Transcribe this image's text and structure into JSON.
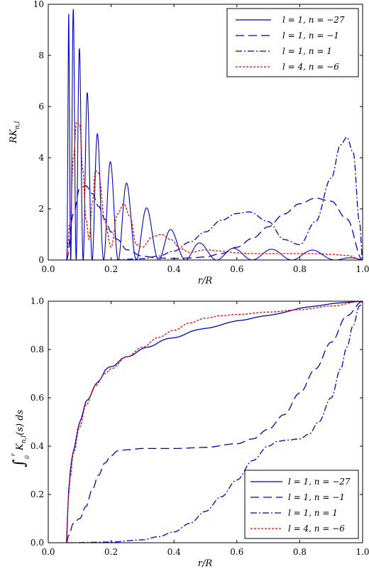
{
  "chart_data": [
    {
      "type": "line",
      "panel": "top",
      "xlabel": "r/R",
      "ylabel": "RK_{n,l}",
      "ylabel_main": "RK",
      "ylabel_sub": "n,l",
      "xlim": [
        0.0,
        1.0
      ],
      "ylim": [
        0,
        10
      ],
      "xticks": [
        "0.0",
        "0.2",
        "0.4",
        "0.6",
        "0.8",
        "1.0"
      ],
      "yticks": [
        "0",
        "2",
        "4",
        "6",
        "8",
        "10"
      ],
      "grid": false,
      "legend_position": "top-right",
      "series": [
        {
          "name": "l = 1, n = −27",
          "color": "#0000cc",
          "dash": "solid",
          "model": "oscillating",
          "x": [
            0.058,
            0.065,
            0.07,
            0.08,
            0.1,
            0.12,
            0.14,
            0.16,
            0.18,
            0.2,
            0.25,
            0.3,
            0.35,
            0.4,
            0.45,
            0.5,
            0.55,
            0.6,
            0.65,
            0.7,
            0.75,
            0.8,
            0.85,
            0.9,
            0.95,
            1.0
          ],
          "y": [
            0,
            10,
            10,
            9.8,
            8.2,
            6.8,
            5.6,
            4.8,
            4.2,
            3.8,
            3.0,
            2.2,
            1.6,
            1.1,
            0.8,
            0.6,
            0.5,
            0.45,
            0.42,
            0.42,
            0.42,
            0.42,
            0.38,
            0.3,
            0.15,
            0
          ]
        },
        {
          "name": "l = 1, n = −1",
          "color": "#0000cc",
          "dash": "long-dash",
          "model": "smooth",
          "x": [
            0.058,
            0.08,
            0.1,
            0.12,
            0.14,
            0.16,
            0.18,
            0.2,
            0.22,
            0.25,
            0.3,
            0.35,
            0.4,
            0.45,
            0.5,
            0.55,
            0.6,
            0.65,
            0.7,
            0.75,
            0.8,
            0.85,
            0.9,
            0.95,
            1.0
          ],
          "y": [
            0,
            1.8,
            2.8,
            2.9,
            2.6,
            2.1,
            1.6,
            1.1,
            0.8,
            0.4,
            0.15,
            0.08,
            0.06,
            0.08,
            0.12,
            0.25,
            0.5,
            0.85,
            1.3,
            1.8,
            2.2,
            2.42,
            2.3,
            1.6,
            0
          ]
        },
        {
          "name": "l = 1, n = 1",
          "color": "#0000cc",
          "dash": "dash-dot",
          "model": "smooth",
          "x": [
            0.058,
            0.1,
            0.2,
            0.3,
            0.35,
            0.4,
            0.45,
            0.5,
            0.55,
            0.6,
            0.64,
            0.7,
            0.75,
            0.8,
            0.85,
            0.9,
            0.93,
            0.95,
            0.97,
            0.99,
            1.0
          ],
          "y": [
            0,
            0.0,
            0.0,
            0.05,
            0.15,
            0.35,
            0.7,
            1.1,
            1.55,
            1.82,
            1.88,
            1.5,
            0.8,
            0.6,
            1.5,
            3.2,
            4.5,
            4.8,
            4.2,
            1.5,
            0
          ]
        },
        {
          "name": "l = 4, n = −6",
          "color": "#ff0000",
          "dash": "dotted",
          "model": "smooth",
          "x": [
            0.058,
            0.07,
            0.08,
            0.09,
            0.1,
            0.11,
            0.12,
            0.13,
            0.14,
            0.15,
            0.16,
            0.18,
            0.2,
            0.22,
            0.24,
            0.26,
            0.28,
            0.3,
            0.33,
            0.36,
            0.39,
            0.42,
            0.45,
            0.5,
            0.55,
            0.6,
            0.65,
            0.7,
            0.75,
            0.8,
            0.85,
            0.9,
            0.95,
            1.0
          ],
          "y": [
            0.2,
            1.5,
            4.0,
            5.4,
            5.3,
            3.5,
            1.6,
            0.8,
            2.2,
            3.5,
            3.4,
            1.5,
            0.5,
            1.8,
            2.2,
            1.7,
            0.6,
            0.5,
            0.9,
            1.0,
            0.8,
            0.45,
            0.3,
            0.4,
            0.35,
            0.28,
            0.25,
            0.25,
            0.25,
            0.25,
            0.25,
            0.22,
            0.18,
            0
          ]
        }
      ]
    },
    {
      "type": "line",
      "panel": "bottom",
      "xlabel": "r/R",
      "ylabel": "∫₀ʳ K_{n,l}(s) ds",
      "ylabel_main": "K",
      "ylabel_sub": "n,l",
      "ylabel_tail": "(s) ds",
      "xlim": [
        0.0,
        1.0
      ],
      "ylim": [
        0,
        1.0
      ],
      "xticks": [
        "0.0",
        "0.2",
        "0.4",
        "0.6",
        "0.8",
        "1.0"
      ],
      "yticks": [
        "0.0",
        "0.2",
        "0.4",
        "0.6",
        "0.8",
        "1.0"
      ],
      "grid": false,
      "legend_position": "bottom-right",
      "series": [
        {
          "name": "l = 1, n = −27",
          "color": "#0000cc",
          "dash": "solid",
          "model": "cumulative-oscillating",
          "x": [
            0.058,
            0.065,
            0.07,
            0.08,
            0.1,
            0.12,
            0.15,
            0.18,
            0.2,
            0.25,
            0.3,
            0.35,
            0.4,
            0.45,
            0.5,
            0.55,
            0.6,
            0.7,
            0.8,
            0.9,
            1.0
          ],
          "y": [
            0,
            0.22,
            0.3,
            0.38,
            0.5,
            0.58,
            0.65,
            0.71,
            0.73,
            0.77,
            0.8,
            0.83,
            0.85,
            0.87,
            0.89,
            0.9,
            0.92,
            0.94,
            0.97,
            0.99,
            1.0
          ]
        },
        {
          "name": "l = 1, n = −1",
          "color": "#0000cc",
          "dash": "long-dash",
          "model": "smooth",
          "x": [
            0.058,
            0.065,
            0.08,
            0.1,
            0.12,
            0.14,
            0.16,
            0.18,
            0.2,
            0.22,
            0.25,
            0.3,
            0.4,
            0.5,
            0.6,
            0.65,
            0.7,
            0.75,
            0.8,
            0.85,
            0.9,
            0.95,
            1.0
          ],
          "y": [
            0,
            0.03,
            0.08,
            0.1,
            0.15,
            0.22,
            0.28,
            0.33,
            0.36,
            0.38,
            0.385,
            0.39,
            0.39,
            0.395,
            0.41,
            0.43,
            0.47,
            0.53,
            0.62,
            0.72,
            0.83,
            0.94,
            1.0
          ]
        },
        {
          "name": "l = 1, n = 1",
          "color": "#0000cc",
          "dash": "dash-dot",
          "model": "smooth",
          "x": [
            0.058,
            0.2,
            0.3,
            0.35,
            0.4,
            0.45,
            0.5,
            0.55,
            0.6,
            0.65,
            0.7,
            0.73,
            0.76,
            0.8,
            0.83,
            0.86,
            0.9,
            0.93,
            0.95,
            0.97,
            0.99,
            1.0
          ],
          "y": [
            0,
            0.003,
            0.012,
            0.025,
            0.045,
            0.08,
            0.13,
            0.19,
            0.26,
            0.34,
            0.4,
            0.42,
            0.425,
            0.43,
            0.45,
            0.5,
            0.6,
            0.72,
            0.81,
            0.9,
            0.98,
            1.0
          ]
        },
        {
          "name": "l = 4, n = −6",
          "color": "#ff0000",
          "dash": "dotted",
          "model": "smooth",
          "x": [
            0.058,
            0.065,
            0.07,
            0.08,
            0.1,
            0.12,
            0.15,
            0.18,
            0.2,
            0.25,
            0.3,
            0.35,
            0.4,
            0.45,
            0.5,
            0.55,
            0.6,
            0.7,
            0.8,
            0.9,
            1.0
          ],
          "y": [
            0,
            0.2,
            0.27,
            0.37,
            0.48,
            0.57,
            0.65,
            0.7,
            0.72,
            0.77,
            0.81,
            0.85,
            0.88,
            0.91,
            0.93,
            0.94,
            0.945,
            0.955,
            0.965,
            0.98,
            1.0
          ]
        }
      ]
    }
  ]
}
